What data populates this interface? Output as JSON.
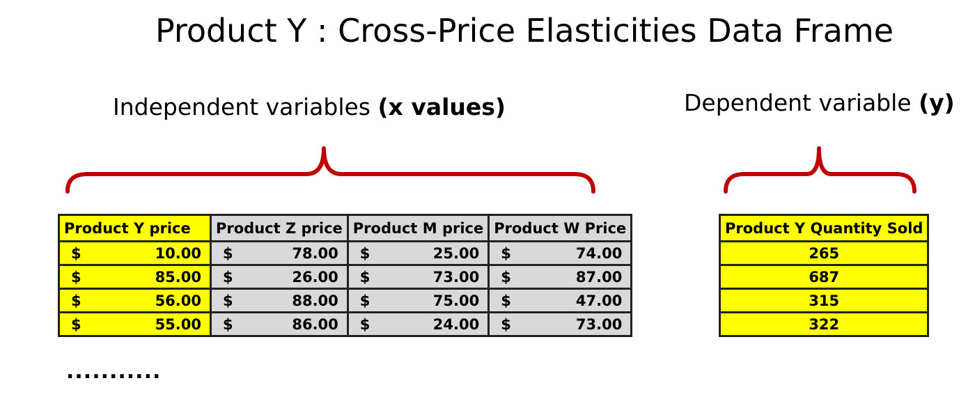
{
  "title": "Product Y : Cross-Price Elasticities Data Frame",
  "independent": {
    "heading_plain": "Independent variables ",
    "heading_bold": "(x values)"
  },
  "dependent": {
    "heading_plain": "Dependent variable ",
    "heading_bold": "(y)"
  },
  "currency_symbol": "$",
  "x_table": {
    "headers": [
      "Product Y price",
      "Product Z price",
      "Product M price",
      "Product W  Price"
    ],
    "rows": [
      [
        "10.00",
        "78.00",
        "25.00",
        "74.00"
      ],
      [
        "85.00",
        "26.00",
        "73.00",
        "87.00"
      ],
      [
        "56.00",
        "88.00",
        "75.00",
        "47.00"
      ],
      [
        "55.00",
        "86.00",
        "24.00",
        "73.00"
      ]
    ]
  },
  "y_table": {
    "header": "Product Y Quantity Sold",
    "values": [
      "265",
      "687",
      "315",
      "322"
    ]
  },
  "ellipsis": "...........",
  "colors": {
    "highlight": "#ffff00",
    "cell_grey": "#d9d9d9",
    "brace": "#c00000",
    "border": "#222222"
  }
}
